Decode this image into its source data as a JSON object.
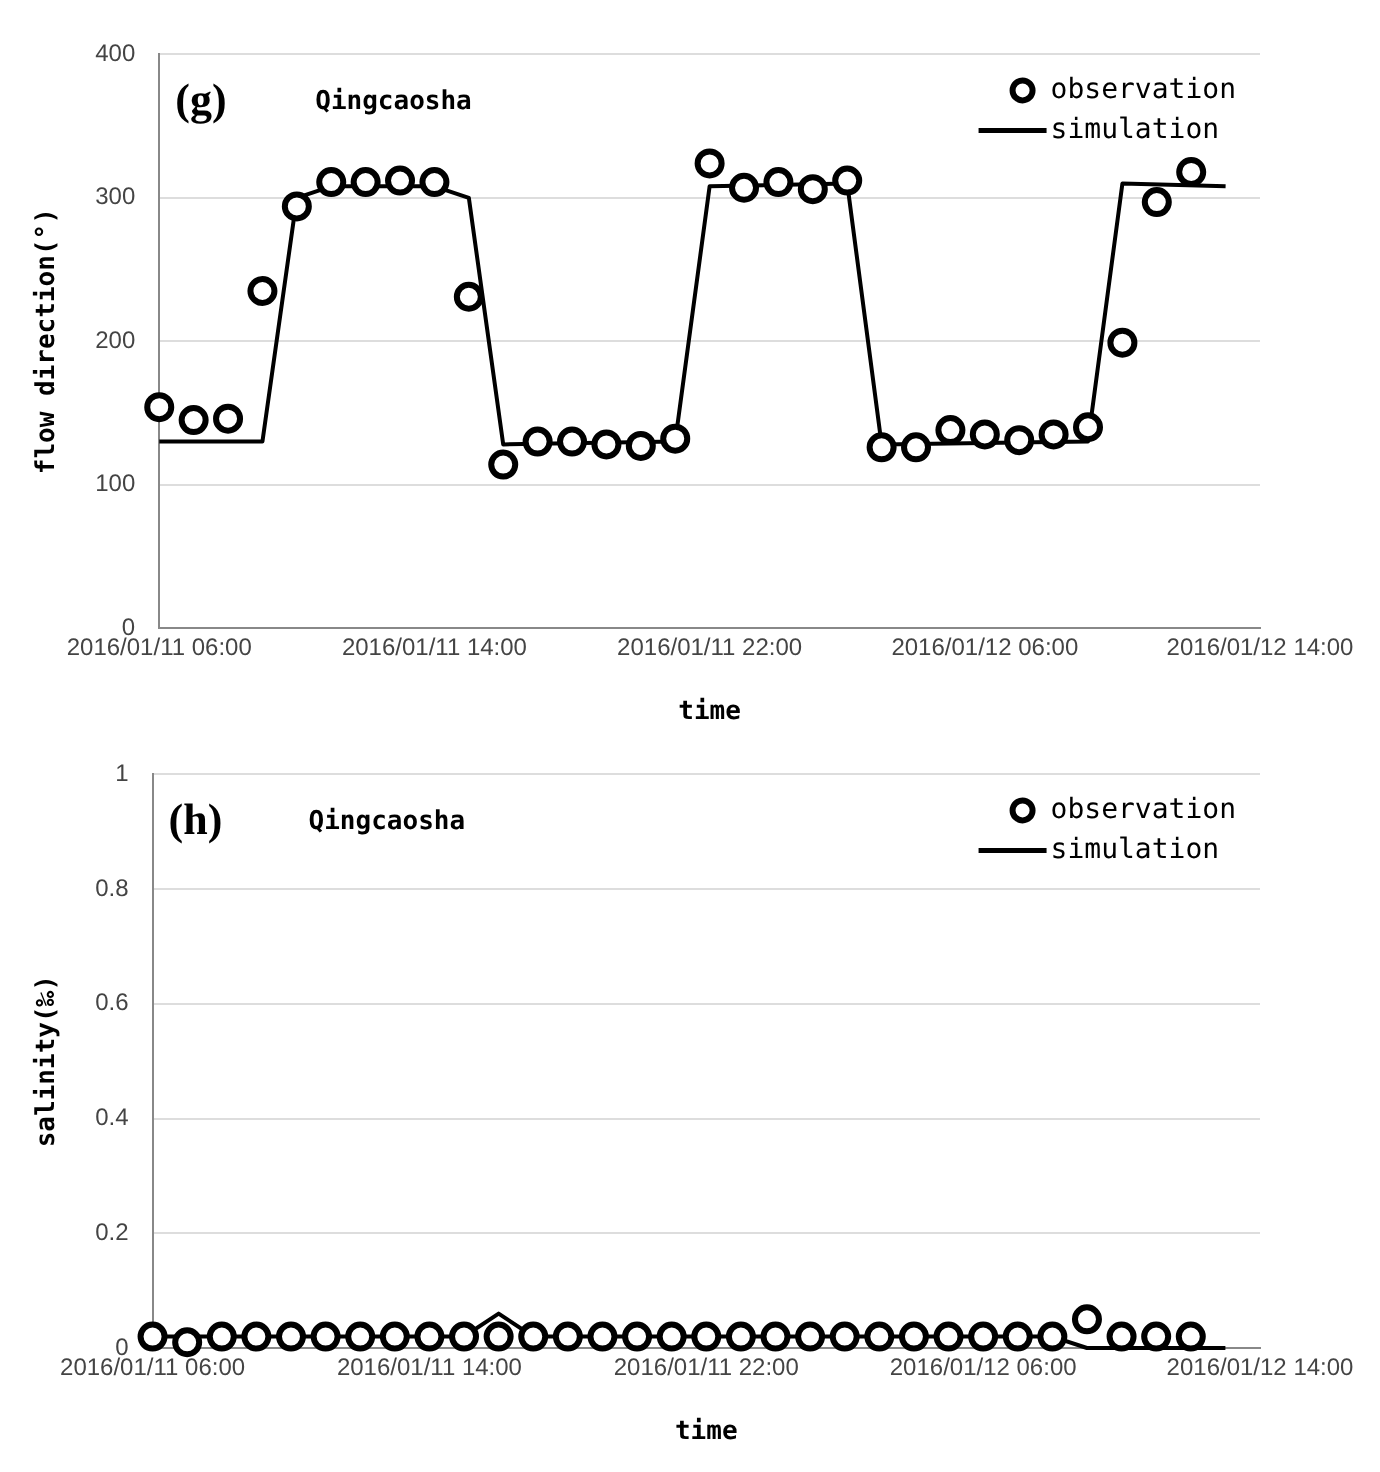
{
  "chart_data": [
    {
      "type": "line",
      "annotations": [
        "(g)",
        "Qingcaosha"
      ],
      "xlabel": "time",
      "ylabel": "flow direction(°)",
      "xlim": [
        "2016-01-11T06:00",
        "2016-01-12T14:00"
      ],
      "xticks": [
        {
          "value": "2016-01-11T06:00",
          "label": "2016/01/11 06:00"
        },
        {
          "value": "2016-01-11T14:00",
          "label": "2016/01/11 14:00"
        },
        {
          "value": "2016-01-11T22:00",
          "label": "2016/01/11 22:00"
        },
        {
          "value": "2016-01-12T06:00",
          "label": "2016/01/12 06:00"
        },
        {
          "value": "2016-01-12T14:00",
          "label": "2016/01/12 14:00"
        }
      ],
      "ylim": [
        0,
        400
      ],
      "yticks": [
        0,
        100,
        200,
        300,
        400
      ],
      "grid": "y",
      "legend": "top right",
      "series": [
        {
          "name": "observation",
          "type": "scatter",
          "marker": "circle",
          "color": "#000000",
          "x": [
            "2016-01-11T06:00",
            "2016-01-11T07:00",
            "2016-01-11T08:00",
            "2016-01-11T09:00",
            "2016-01-11T10:00",
            "2016-01-11T11:00",
            "2016-01-11T12:00",
            "2016-01-11T13:00",
            "2016-01-11T14:00",
            "2016-01-11T15:00",
            "2016-01-11T16:00",
            "2016-01-11T17:00",
            "2016-01-11T18:00",
            "2016-01-11T19:00",
            "2016-01-11T20:00",
            "2016-01-11T21:00",
            "2016-01-11T22:00",
            "2016-01-11T23:00",
            "2016-01-12T00:00",
            "2016-01-12T01:00",
            "2016-01-12T02:00",
            "2016-01-12T03:00",
            "2016-01-12T04:00",
            "2016-01-12T05:00",
            "2016-01-12T06:00",
            "2016-01-12T07:00",
            "2016-01-12T08:00",
            "2016-01-12T09:00",
            "2016-01-12T10:00",
            "2016-01-12T11:00",
            "2016-01-12T12:00"
          ],
          "values": [
            154,
            145,
            146,
            235,
            294,
            311,
            311,
            312,
            311,
            231,
            114,
            130,
            130,
            128,
            127,
            132,
            324,
            307,
            311,
            306,
            312,
            126,
            126,
            138,
            135,
            131,
            135,
            140,
            199,
            297,
            318
          ]
        },
        {
          "name": "simulation",
          "type": "line",
          "marker": "none",
          "color": "#000000",
          "x": [
            "2016-01-11T06:00",
            "2016-01-11T09:00",
            "2016-01-11T10:00",
            "2016-01-11T11:00",
            "2016-01-11T14:00",
            "2016-01-11T15:00",
            "2016-01-11T16:00",
            "2016-01-11T21:00",
            "2016-01-11T22:00",
            "2016-01-12T02:00",
            "2016-01-12T03:00",
            "2016-01-12T09:00",
            "2016-01-12T10:00",
            "2016-01-12T13:00"
          ],
          "values": [
            130,
            130,
            300,
            308,
            308,
            300,
            128,
            130,
            308,
            310,
            128,
            130,
            310,
            308
          ]
        }
      ]
    },
    {
      "type": "line",
      "annotations": [
        "(h)",
        "Qingcaosha"
      ],
      "xlabel": "time",
      "ylabel": "salinity(‰)",
      "xlim": [
        "2016-01-11T06:00",
        "2016-01-12T14:00"
      ],
      "xticks": [
        {
          "value": "2016-01-11T06:00",
          "label": "2016/01/11 06:00"
        },
        {
          "value": "2016-01-11T14:00",
          "label": "2016/01/11 14:00"
        },
        {
          "value": "2016-01-11T22:00",
          "label": "2016/01/11 22:00"
        },
        {
          "value": "2016-01-12T06:00",
          "label": "2016/01/12 06:00"
        },
        {
          "value": "2016-01-12T14:00",
          "label": "2016/01/12 14:00"
        }
      ],
      "ylim": [
        0,
        1
      ],
      "yticks": [
        0,
        0.2,
        0.4,
        0.6,
        0.8,
        1
      ],
      "grid": "y",
      "legend": "top right",
      "series": [
        {
          "name": "observation",
          "type": "scatter",
          "marker": "circle",
          "color": "#000000",
          "x": [
            "2016-01-11T06:00",
            "2016-01-11T07:00",
            "2016-01-11T08:00",
            "2016-01-11T09:00",
            "2016-01-11T10:00",
            "2016-01-11T11:00",
            "2016-01-11T12:00",
            "2016-01-11T13:00",
            "2016-01-11T14:00",
            "2016-01-11T15:00",
            "2016-01-11T16:00",
            "2016-01-11T17:00",
            "2016-01-11T18:00",
            "2016-01-11T19:00",
            "2016-01-11T20:00",
            "2016-01-11T21:00",
            "2016-01-11T22:00",
            "2016-01-11T23:00",
            "2016-01-12T00:00",
            "2016-01-12T01:00",
            "2016-01-12T02:00",
            "2016-01-12T03:00",
            "2016-01-12T04:00",
            "2016-01-12T05:00",
            "2016-01-12T06:00",
            "2016-01-12T07:00",
            "2016-01-12T08:00",
            "2016-01-12T09:00",
            "2016-01-12T10:00",
            "2016-01-12T11:00",
            "2016-01-12T12:00"
          ],
          "values": [
            0.02,
            0.01,
            0.02,
            0.02,
            0.02,
            0.02,
            0.02,
            0.02,
            0.02,
            0.02,
            0.02,
            0.02,
            0.02,
            0.02,
            0.02,
            0.02,
            0.02,
            0.02,
            0.02,
            0.02,
            0.02,
            0.02,
            0.02,
            0.02,
            0.02,
            0.02,
            0.02,
            0.05,
            0.02,
            0.02,
            0.02
          ]
        },
        {
          "name": "simulation",
          "type": "line",
          "marker": "none",
          "color": "#000000",
          "x": [
            "2016-01-11T06:00",
            "2016-01-11T15:00",
            "2016-01-11T16:00",
            "2016-01-11T17:00",
            "2016-01-12T08:00",
            "2016-01-12T09:00",
            "2016-01-12T10:00",
            "2016-01-12T13:00"
          ],
          "values": [
            0.02,
            0.02,
            0.06,
            0.02,
            0.02,
            0,
            0,
            0
          ]
        }
      ]
    }
  ]
}
